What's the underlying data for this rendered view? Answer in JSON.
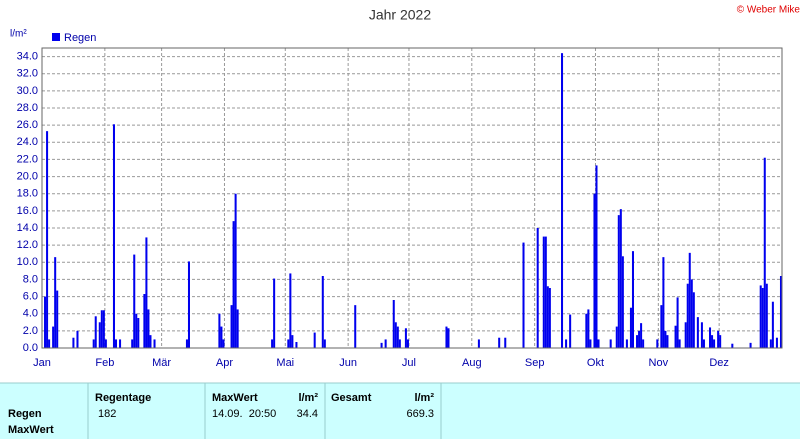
{
  "chart_data": {
    "type": "bar",
    "title": "Jahr 2022",
    "credit": "© Weber Mike",
    "ylabel": "l/m²",
    "color": "#0000ee",
    "grid": true,
    "legend": "top-left",
    "series_name": "Regen",
    "xlim": [
      0,
      365
    ],
    "xticks": [
      {
        "value": 0,
        "label": "Jan"
      },
      {
        "value": 31,
        "label": "Feb"
      },
      {
        "value": 59,
        "label": "Mär"
      },
      {
        "value": 90,
        "label": "Apr"
      },
      {
        "value": 120,
        "label": "Mai"
      },
      {
        "value": 151,
        "label": "Jun"
      },
      {
        "value": 181,
        "label": "Jul"
      },
      {
        "value": 212,
        "label": "Aug"
      },
      {
        "value": 243,
        "label": "Sep"
      },
      {
        "value": 273,
        "label": "Okt"
      },
      {
        "value": 304,
        "label": "Nov"
      },
      {
        "value": 334,
        "label": "Dez"
      }
    ],
    "ylim": [
      0,
      35
    ],
    "yticks": [
      {
        "value": 0,
        "label": "0.0"
      },
      {
        "value": 2,
        "label": "2.0"
      },
      {
        "value": 4,
        "label": "4.0"
      },
      {
        "value": 6,
        "label": "6.0"
      },
      {
        "value": 8,
        "label": "8.0"
      },
      {
        "value": 10,
        "label": "10.0"
      },
      {
        "value": 12,
        "label": "12.0"
      },
      {
        "value": 14,
        "label": "14.0"
      },
      {
        "value": 16,
        "label": "16.0"
      },
      {
        "value": 18,
        "label": "18.0"
      },
      {
        "value": 20,
        "label": "20.0"
      },
      {
        "value": 22,
        "label": "22.0"
      },
      {
        "value": 24,
        "label": "24.0"
      },
      {
        "value": 26,
        "label": "26.0"
      },
      {
        "value": 28,
        "label": "28.0"
      },
      {
        "value": 30,
        "label": "30.0"
      },
      {
        "value": 32,
        "label": "32.0"
      },
      {
        "value": 34,
        "label": "34.0"
      }
    ],
    "x": [
      1,
      2,
      3,
      5,
      6,
      7,
      15,
      17,
      25,
      26,
      28,
      29,
      30,
      31,
      35,
      36,
      38,
      44,
      45,
      46,
      47,
      50,
      51,
      52,
      53,
      55,
      71,
      72,
      87,
      88,
      89,
      93,
      94,
      95,
      96,
      113,
      114,
      121,
      122,
      123,
      125,
      134,
      138,
      139,
      154,
      167,
      169,
      173,
      174,
      175,
      176,
      179,
      180,
      199,
      200,
      215,
      225,
      228,
      237,
      244,
      247,
      248,
      249,
      250,
      256,
      258,
      260,
      268,
      269,
      270,
      272,
      273,
      274,
      280,
      283,
      284,
      285,
      286,
      288,
      290,
      291,
      293,
      294,
      295,
      296,
      303,
      305,
      306,
      307,
      308,
      312,
      313,
      314,
      317,
      318,
      319,
      320,
      321,
      323,
      325,
      326,
      329,
      330,
      331,
      333,
      334,
      340,
      349,
      354,
      355,
      356,
      357,
      359,
      360,
      362,
      364
    ],
    "values": [
      6.0,
      25.3,
      1.0,
      2.5,
      10.6,
      6.7,
      1.2,
      2.0,
      1.0,
      3.7,
      3.0,
      4.4,
      4.4,
      1.0,
      26.1,
      1.0,
      1.0,
      1.0,
      10.9,
      4.0,
      3.5,
      6.3,
      12.9,
      4.5,
      1.5,
      1.0,
      1.0,
      10.1,
      4.0,
      2.5,
      1.0,
      5.0,
      14.8,
      18.0,
      4.5,
      1.0,
      8.1,
      1.0,
      8.7,
      1.5,
      0.7,
      1.8,
      8.4,
      1.0,
      5.0,
      0.6,
      1.0,
      5.6,
      3.0,
      2.5,
      1.0,
      2.3,
      1.0,
      2.5,
      2.3,
      1.0,
      1.2,
      1.2,
      12.3,
      14.0,
      13.0,
      13.0,
      7.2,
      7.0,
      34.4,
      1.0,
      3.9,
      4.0,
      4.5,
      1.0,
      18.0,
      21.3,
      1.0,
      1.0,
      2.5,
      15.5,
      16.2,
      10.7,
      1.0,
      4.7,
      11.3,
      1.5,
      2.0,
      2.9,
      1.0,
      1.0,
      5.0,
      10.6,
      2.0,
      1.5,
      2.6,
      5.9,
      1.0,
      3.0,
      7.5,
      11.1,
      8.0,
      6.5,
      3.6,
      3.0,
      1.0,
      2.4,
      1.5,
      1.0,
      2.0,
      1.5,
      0.5,
      0.6,
      7.3,
      7.0,
      22.2,
      7.5,
      1.0,
      5.4,
      1.2,
      8.4
    ]
  },
  "table": {
    "row_labels": [
      "Regen",
      "MaxWert"
    ],
    "headers": [
      "Regentage",
      "MaxWert",
      "l/m²",
      "Gesamt",
      "l/m²"
    ],
    "cells": [
      182,
      "14.09.  20:50",
      34.4,
      669.3
    ]
  }
}
